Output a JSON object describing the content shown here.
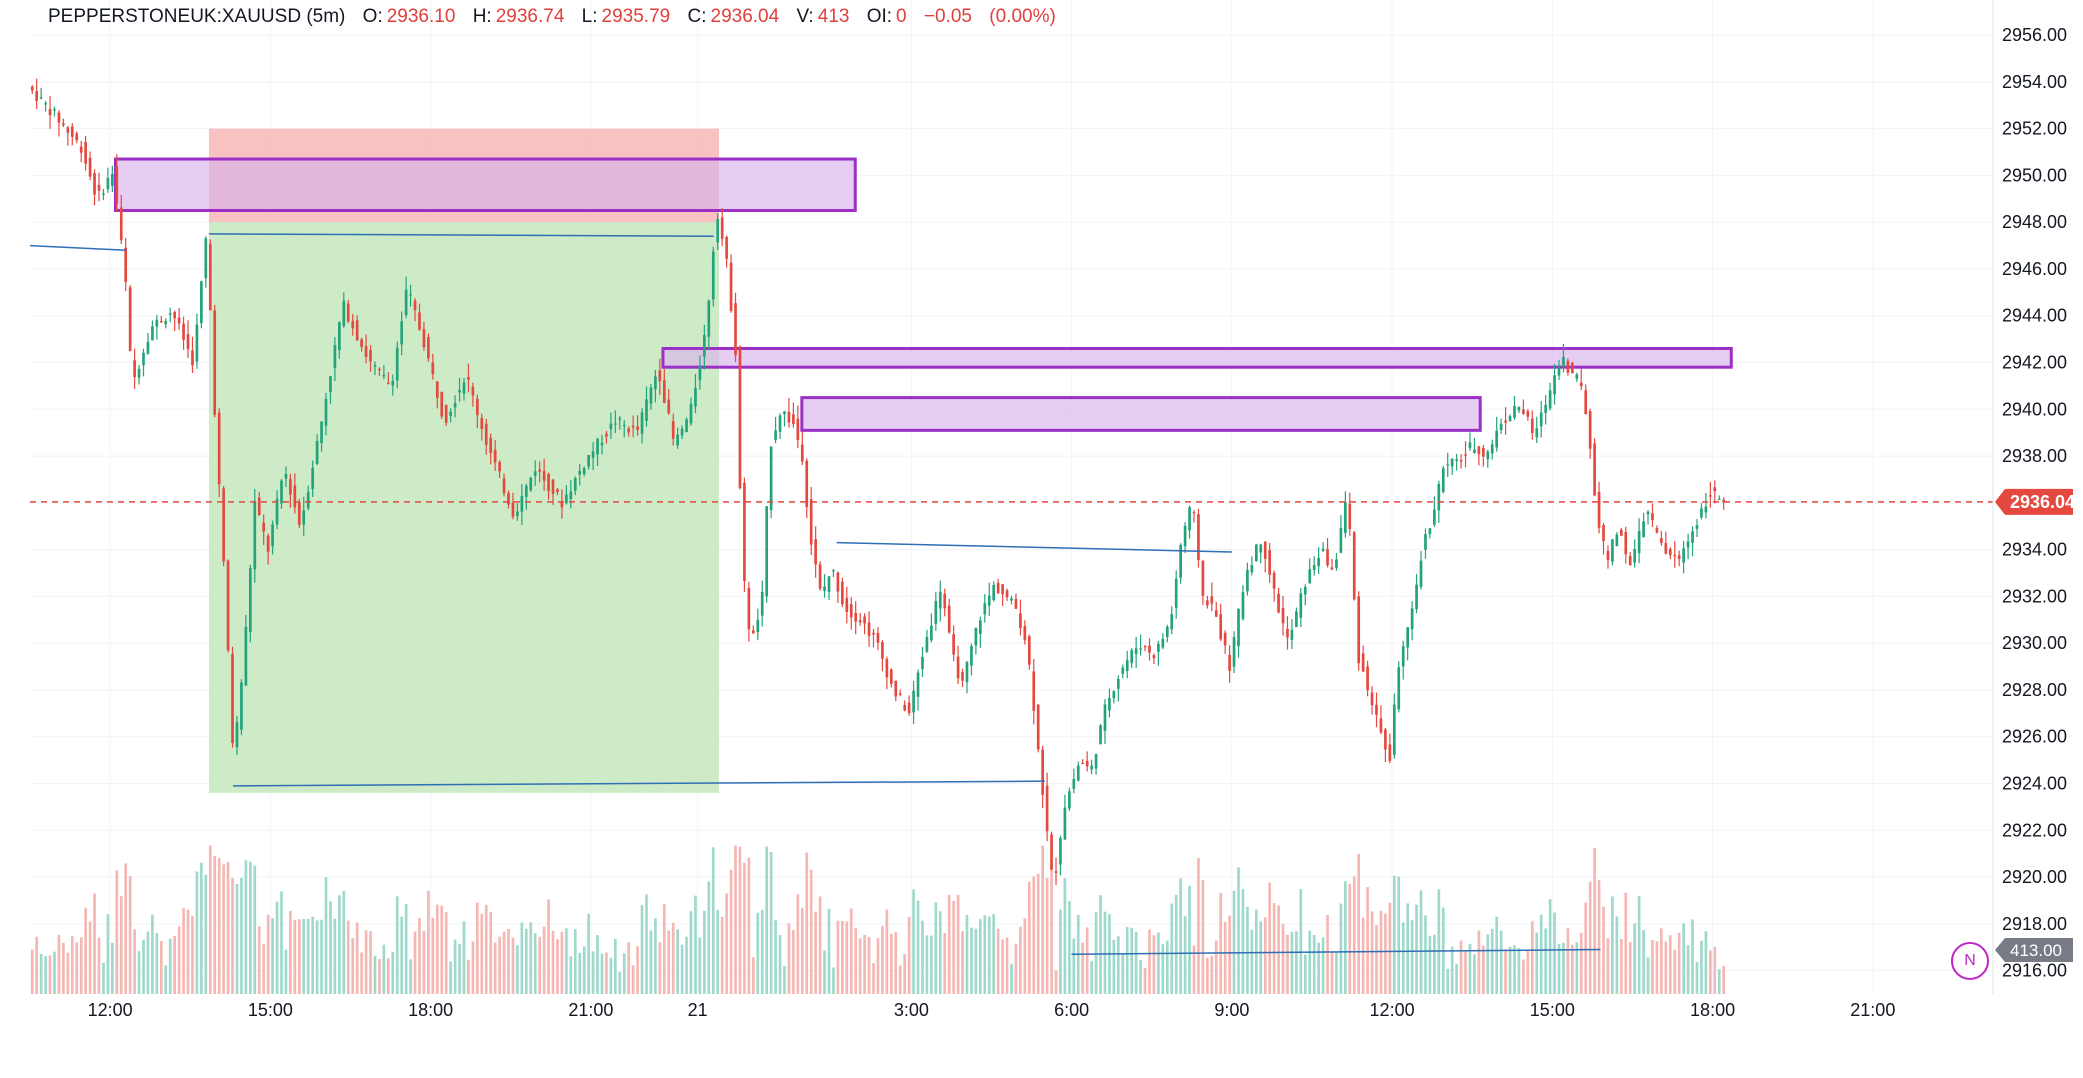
{
  "header": {
    "symbol": "PEPPERSTONEUK:XAUUSD (5m)",
    "open_label": "O:",
    "open": "2936.10",
    "high_label": "H:",
    "high": "2936.74",
    "low_label": "L:",
    "low": "2935.79",
    "close_label": "C:",
    "close": "2936.04",
    "volume_label": "V:",
    "volume": "413",
    "oi_label": "OI:",
    "oi": "0",
    "change": "−0.05",
    "change_pct": "(0.00%)"
  },
  "chart_data": {
    "type": "candlestick",
    "symbol": "PEPPERSTONEUK:XAUUSD",
    "interval": "5m",
    "y_ticks": [
      "2956.00",
      "2954.00",
      "2952.00",
      "2950.00",
      "2948.00",
      "2946.00",
      "2944.00",
      "2942.00",
      "2940.00",
      "2938.00",
      "2936.00",
      "2934.00",
      "2932.00",
      "2930.00",
      "2928.00",
      "2926.00",
      "2924.00",
      "2922.00",
      "2920.00",
      "2918.00",
      "2916.00"
    ],
    "ylim": [
      2915.0,
      2957.5
    ],
    "x_ticks": [
      {
        "label": "12:00",
        "h": 12
      },
      {
        "label": "15:00",
        "h": 15
      },
      {
        "label": "18:00",
        "h": 18
      },
      {
        "label": "21:00",
        "h": 21
      },
      {
        "label": "21",
        "h": 23
      },
      {
        "label": "3:00",
        "h": 27
      },
      {
        "label": "6:00",
        "h": 30
      },
      {
        "label": "9:00",
        "h": 33
      },
      {
        "label": "12:00",
        "h": 36
      },
      {
        "label": "15:00",
        "h": 39
      },
      {
        "label": "18:00",
        "h": 42
      },
      {
        "label": "21:00",
        "h": 45
      }
    ],
    "xlim_hours": [
      10.5,
      47.25
    ],
    "price_path": [
      [
        10.5,
        2953.8
      ],
      [
        11.0,
        2952.6
      ],
      [
        11.5,
        2951.2
      ],
      [
        11.8,
        2949.0
      ],
      [
        12.1,
        2950.2
      ],
      [
        12.35,
        2945.0
      ],
      [
        12.45,
        2941.0
      ],
      [
        12.8,
        2943.5
      ],
      [
        13.2,
        2944.2
      ],
      [
        13.6,
        2942.0
      ],
      [
        13.85,
        2947.6
      ],
      [
        14.0,
        2940.0
      ],
      [
        14.2,
        2932.0
      ],
      [
        14.35,
        2925.0
      ],
      [
        14.55,
        2929.5
      ],
      [
        14.75,
        2936.0
      ],
      [
        15.0,
        2934.0
      ],
      [
        15.3,
        2937.5
      ],
      [
        15.6,
        2935.0
      ],
      [
        16.0,
        2939.5
      ],
      [
        16.4,
        2944.5
      ],
      [
        16.9,
        2942.0
      ],
      [
        17.3,
        2941.0
      ],
      [
        17.6,
        2945.2
      ],
      [
        17.9,
        2943.0
      ],
      [
        18.3,
        2939.5
      ],
      [
        18.7,
        2941.5
      ],
      [
        19.1,
        2938.5
      ],
      [
        19.6,
        2935.5
      ],
      [
        20.0,
        2937.5
      ],
      [
        20.5,
        2936.0
      ],
      [
        21.0,
        2938.0
      ],
      [
        21.5,
        2939.5
      ],
      [
        21.9,
        2939.0
      ],
      [
        22.3,
        2941.8
      ],
      [
        22.6,
        2938.5
      ],
      [
        22.9,
        2939.8
      ],
      [
        23.2,
        2943.5
      ],
      [
        23.4,
        2948.6
      ],
      [
        23.6,
        2946.0
      ],
      [
        23.75,
        2942.5
      ],
      [
        23.85,
        2935.5
      ],
      [
        23.95,
        2931.0
      ],
      [
        24.1,
        2930.2
      ],
      [
        24.25,
        2932.0
      ],
      [
        24.4,
        2938.5
      ],
      [
        24.6,
        2940.0
      ],
      [
        24.85,
        2939.3
      ],
      [
        25.0,
        2938.0
      ],
      [
        25.15,
        2934.5
      ],
      [
        25.35,
        2932.0
      ],
      [
        25.55,
        2933.2
      ],
      [
        25.8,
        2931.5
      ],
      [
        26.1,
        2931.0
      ],
      [
        26.4,
        2930.0
      ],
      [
        26.7,
        2928.0
      ],
      [
        27.0,
        2927.0
      ],
      [
        27.3,
        2930.0
      ],
      [
        27.6,
        2932.5
      ],
      [
        27.8,
        2929.5
      ],
      [
        28.0,
        2928.2
      ],
      [
        28.3,
        2931.0
      ],
      [
        28.6,
        2932.5
      ],
      [
        29.0,
        2931.5
      ],
      [
        29.2,
        2930.0
      ],
      [
        29.4,
        2926.0
      ],
      [
        29.55,
        2922.5
      ],
      [
        29.7,
        2919.5
      ],
      [
        29.9,
        2923.0
      ],
      [
        30.2,
        2925.0
      ],
      [
        30.4,
        2924.5
      ],
      [
        30.7,
        2927.5
      ],
      [
        31.0,
        2929.0
      ],
      [
        31.3,
        2930.0
      ],
      [
        31.6,
        2929.5
      ],
      [
        31.9,
        2931.0
      ],
      [
        32.1,
        2934.5
      ],
      [
        32.3,
        2936.0
      ],
      [
        32.5,
        2932.0
      ],
      [
        32.7,
        2931.5
      ],
      [
        33.0,
        2929.0
      ],
      [
        33.3,
        2933.0
      ],
      [
        33.6,
        2934.5
      ],
      [
        33.85,
        2932.0
      ],
      [
        34.1,
        2930.0
      ],
      [
        34.4,
        2932.5
      ],
      [
        34.7,
        2934.0
      ],
      [
        34.95,
        2933.0
      ],
      [
        35.2,
        2936.5
      ],
      [
        35.4,
        2929.5
      ],
      [
        35.6,
        2928.0
      ],
      [
        35.85,
        2926.0
      ],
      [
        36.0,
        2925.0
      ],
      [
        36.15,
        2929.0
      ],
      [
        36.4,
        2931.0
      ],
      [
        36.6,
        2934.0
      ],
      [
        36.8,
        2935.5
      ],
      [
        37.0,
        2937.5
      ],
      [
        37.3,
        2937.8
      ],
      [
        37.55,
        2938.5
      ],
      [
        37.8,
        2938.0
      ],
      [
        38.1,
        2939.5
      ],
      [
        38.45,
        2940.2
      ],
      [
        38.7,
        2938.8
      ],
      [
        38.95,
        2940.5
      ],
      [
        39.2,
        2942.3
      ],
      [
        39.4,
        2941.5
      ],
      [
        39.55,
        2941.3
      ],
      [
        39.7,
        2939.5
      ],
      [
        39.85,
        2936.0
      ],
      [
        40.05,
        2933.5
      ],
      [
        40.3,
        2935.0
      ],
      [
        40.5,
        2933.2
      ],
      [
        40.8,
        2935.8
      ],
      [
        41.1,
        2934.0
      ],
      [
        41.4,
        2933.5
      ],
      [
        41.7,
        2935.0
      ],
      [
        42.0,
        2936.5
      ],
      [
        42.25,
        2936.0
      ]
    ],
    "zones": [
      {
        "name": "short-stop-zone",
        "color": "#f7a6a6",
        "top": 2952.0,
        "bottom": 2948.0,
        "h0": 13.85,
        "h1": 23.4
      },
      {
        "name": "long-target-zone",
        "color": "#b9e3b0",
        "top": 2948.0,
        "bottom": 2923.6,
        "h0": 13.85,
        "h1": 23.4
      },
      {
        "name": "supply-box-1",
        "color": "#d9b3ec",
        "top": 2950.7,
        "bottom": 2948.5,
        "h0": 12.1,
        "h1": 25.95
      },
      {
        "name": "supply-box-2",
        "color": "#d9b3ec",
        "top": 2942.6,
        "bottom": 2941.8,
        "h0": 22.35,
        "h1": 42.35
      },
      {
        "name": "supply-box-3",
        "color": "#d9b3ec",
        "top": 2940.5,
        "bottom": 2939.1,
        "h0": 24.95,
        "h1": 37.65
      }
    ],
    "trendlines": [
      [
        [
          10.5,
          2947.0
        ],
        [
          12.3,
          2946.8
        ]
      ],
      [
        [
          13.85,
          2947.5
        ],
        [
          23.3,
          2947.4
        ]
      ],
      [
        [
          14.3,
          2923.9
        ],
        [
          29.5,
          2924.1
        ]
      ],
      [
        [
          25.6,
          2934.3
        ],
        [
          33.0,
          2933.9
        ]
      ],
      [
        [
          30.0,
          2916.7
        ],
        [
          39.9,
          2916.9
        ]
      ]
    ],
    "last_price": 2936.04,
    "last_price_label": "2936.04",
    "last_volume_label": "413.00",
    "colors": {
      "up": "#22a37a",
      "down": "#e5483f",
      "vol_up": "#9fd9cb",
      "vol_down": "#f5b7b3",
      "marker": "#9b2fc7",
      "line": "#2f6fb5"
    }
  },
  "badge": {
    "label": "N"
  }
}
